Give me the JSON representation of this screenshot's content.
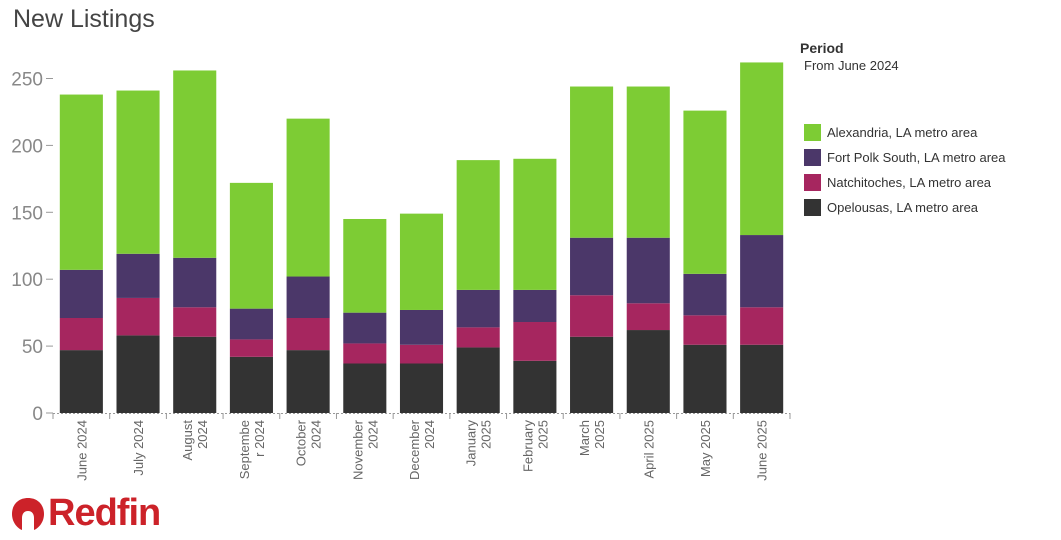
{
  "title": "New Listings",
  "legend": {
    "heading": "Period",
    "subheading": "From June 2024"
  },
  "brand": {
    "name": "Redfin",
    "color": "#cc2229"
  },
  "chart_data": {
    "type": "bar",
    "stacked": true,
    "categories": [
      [
        "June 2024"
      ],
      [
        "July 2024"
      ],
      [
        "August",
        "2024"
      ],
      [
        "Septembe",
        "r 2024"
      ],
      [
        "October",
        "2024"
      ],
      [
        "November",
        "2024"
      ],
      [
        "December",
        "2024"
      ],
      [
        "January",
        "2025"
      ],
      [
        "February",
        "2025"
      ],
      [
        "March",
        "2025"
      ],
      [
        "April 2025"
      ],
      [
        "May 2025"
      ],
      [
        "June 2025"
      ]
    ],
    "series": [
      {
        "name": "Opelousas, LA metro area",
        "color": "#333333",
        "values": [
          47,
          58,
          57,
          42,
          47,
          37,
          37,
          49,
          39,
          57,
          62,
          51,
          51
        ]
      },
      {
        "name": "Natchitoches, LA metro area",
        "color": "#a6265f",
        "values": [
          24,
          28,
          22,
          13,
          24,
          15,
          14,
          15,
          29,
          31,
          20,
          22,
          28
        ]
      },
      {
        "name": "Fort Polk South, LA metro area",
        "color": "#4b3769",
        "values": [
          36,
          33,
          37,
          23,
          31,
          23,
          26,
          28,
          24,
          43,
          49,
          31,
          54
        ]
      },
      {
        "name": "Alexandria, LA metro area",
        "color": "#7dcc34",
        "values": [
          131,
          122,
          140,
          94,
          118,
          70,
          72,
          97,
          98,
          113,
          113,
          122,
          129
        ]
      }
    ],
    "ylim": [
      0,
      270
    ],
    "yticks": [
      0,
      50,
      100,
      150,
      200,
      250
    ],
    "legend_position": "right",
    "grid": false
  }
}
